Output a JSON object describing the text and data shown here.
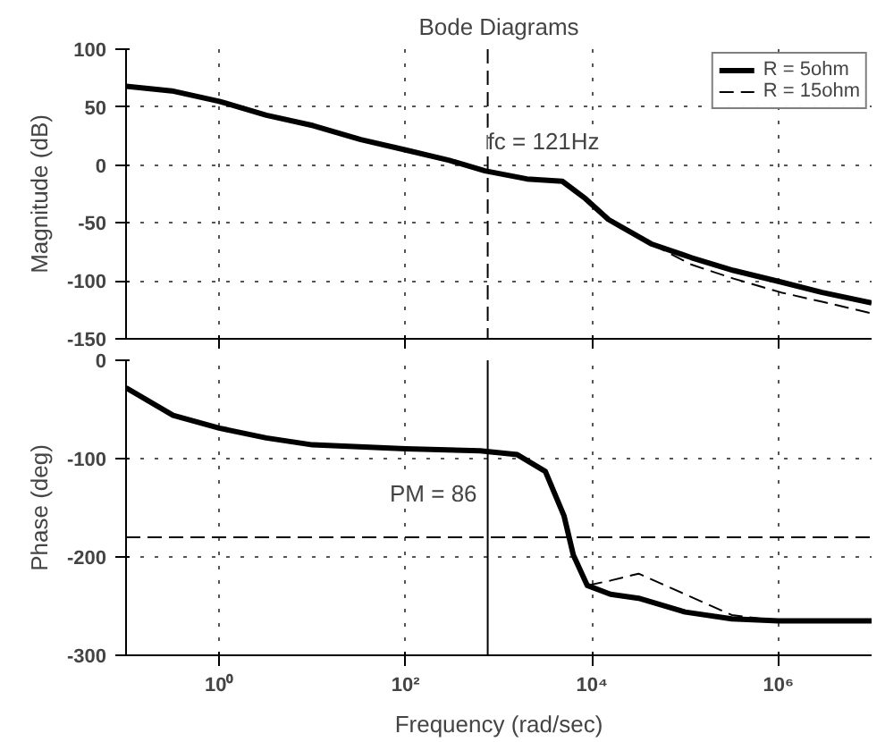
{
  "chart_data": [
    {
      "type": "line",
      "title": "Bode Diagrams",
      "ylabel": "Magnitude (dB)",
      "log": "x",
      "grid": true,
      "legend": "top right",
      "tick_labels": "y",
      "xlim": [
        0.1,
        10000000
      ],
      "ylim": [
        -150,
        100
      ],
      "xticks": [
        {
          "value": 1,
          "label": null
        },
        {
          "value": 100,
          "label": null
        },
        {
          "value": 10000,
          "label": null
        },
        {
          "value": 1000000,
          "label": null
        }
      ],
      "yticks": [
        -150,
        -100,
        -50,
        0,
        50,
        100
      ],
      "x": [
        0.1,
        0.31,
        1,
        3.2,
        10.2,
        33,
        100,
        295,
        710,
        2000,
        4800,
        8500,
        15000,
        43000,
        117000,
        330000,
        1070000,
        2950000,
        10000000
      ],
      "series": [
        {
          "name": "R = 5ohm",
          "color": "#000000",
          "line_style": "solid",
          "values": [
            68,
            64,
            55,
            43,
            34,
            22,
            13,
            4,
            -5,
            -12,
            -14,
            -29,
            -47,
            -68,
            -80,
            -91,
            -101,
            -110,
            -119
          ]
        },
        {
          "name": "R = 15ohm",
          "color": "#000000",
          "line_style": "dashed",
          "values": [
            68,
            64,
            55,
            43,
            34,
            22,
            13,
            4,
            -5,
            -12,
            -14,
            -29,
            -47,
            -68,
            -86,
            -98,
            -110,
            -118,
            -128
          ]
        }
      ],
      "ref_lines": [
        {
          "axis": "x",
          "value": 760,
          "line_style": "dashed",
          "color": "#000000"
        }
      ],
      "annotations": [
        {
          "text": "fc = 121Hz",
          "x": 760,
          "y": 0
        }
      ]
    },
    {
      "type": "line",
      "ylabel": "Phase (deg)",
      "xlabel": "Frequency (rad/sec)",
      "log": "x",
      "grid": true,
      "xlim": [
        0.1,
        10000000
      ],
      "ylim": [
        -300,
        0
      ],
      "xticks": [
        {
          "value": 1,
          "label": "10⁰"
        },
        {
          "value": 100,
          "label": "10²"
        },
        {
          "value": 10000,
          "label": "10⁴"
        },
        {
          "value": 1000000,
          "label": "10⁶"
        }
      ],
      "yticks": [
        -300,
        -200,
        -100,
        0
      ],
      "x": [
        0.1,
        0.32,
        1,
        3.2,
        10,
        100,
        630,
        1580,
        3160,
        5000,
        6300,
        8900,
        15800,
        31600,
        100000,
        316000,
        1000000,
        10000000
      ],
      "series": [
        {
          "color": "#000000",
          "line_style": "solid",
          "values": [
            -28,
            -56,
            -69,
            -79,
            -86,
            -90,
            -92,
            -96,
            -113,
            -158,
            -198,
            -229,
            -238,
            -242,
            -256,
            -263,
            -265,
            -265
          ]
        },
        {
          "color": "#000000",
          "line_style": "dashed",
          "values": [
            -28,
            -56,
            -69,
            -79,
            -86,
            -90,
            -92,
            -96,
            -113,
            -158,
            -198,
            -229,
            -224,
            -217,
            -238,
            -259,
            -265,
            -265
          ]
        }
      ],
      "ref_lines": [
        {
          "axis": "y",
          "value": -180,
          "line_style": "dashed",
          "color": "#000000"
        },
        {
          "axis": "x",
          "value": 760,
          "line_style": "solid",
          "color": "#000000"
        }
      ],
      "annotations": [
        {
          "text": "PM = 86",
          "x": 760,
          "y": -135
        }
      ]
    }
  ]
}
